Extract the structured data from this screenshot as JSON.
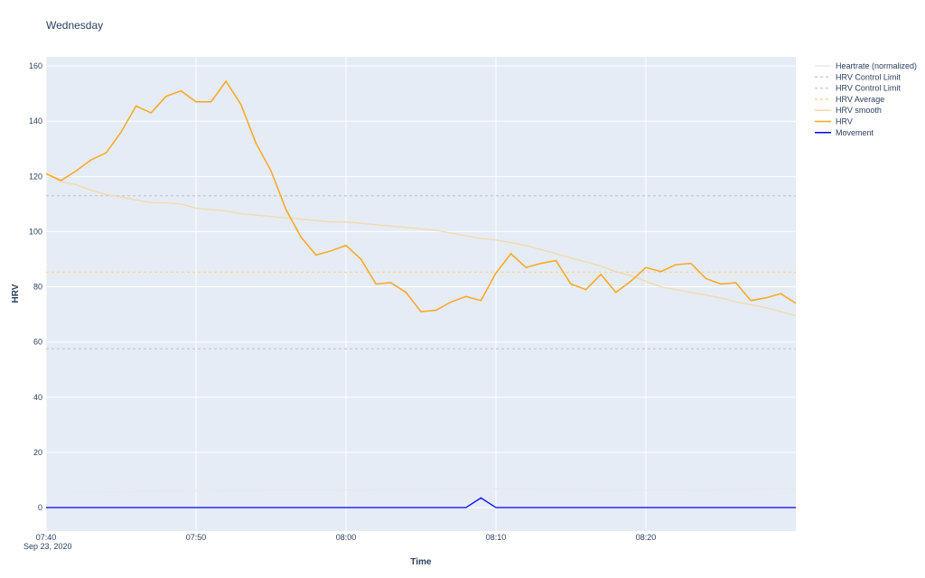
{
  "chart_data": {
    "type": "line",
    "title": "Wednesday",
    "x_label": "Time",
    "y_label": "HRV",
    "x_date": "Sep 23, 2020",
    "x": [
      "07:40",
      "07:41",
      "07:42",
      "07:43",
      "07:44",
      "07:45",
      "07:46",
      "07:47",
      "07:48",
      "07:49",
      "07:50",
      "07:51",
      "07:52",
      "07:53",
      "07:54",
      "07:55",
      "07:56",
      "07:57",
      "07:58",
      "07:59",
      "08:00",
      "08:01",
      "08:02",
      "08:03",
      "08:04",
      "08:05",
      "08:06",
      "08:07",
      "08:08",
      "08:09",
      "08:10",
      "08:11",
      "08:12",
      "08:13",
      "08:14",
      "08:15",
      "08:16",
      "08:17",
      "08:18",
      "08:19",
      "08:20",
      "08:21",
      "08:22",
      "08:23",
      "08:24",
      "08:25",
      "08:26",
      "08:27",
      "08:28",
      "08:29",
      "08:30"
    ],
    "xlim": [
      "07:40",
      "08:30"
    ],
    "xticks": [
      "07:40",
      "07:50",
      "08:00",
      "08:10",
      "08:20"
    ],
    "ylim": [
      -8.5,
      163.3
    ],
    "yticks": [
      0,
      20,
      40,
      60,
      80,
      100,
      120,
      140,
      160
    ],
    "grid": true,
    "series": [
      {
        "name": "Heartrate (normalized)",
        "color": "#e8e8e8",
        "dash": false,
        "values": [
          null,
          null,
          5.5,
          5.6,
          5.6,
          5.7,
          5.8,
          5.9,
          6,
          6,
          6.1,
          6.1,
          6.2,
          6.2,
          6.2,
          6.3,
          6.3,
          6.3,
          6.3,
          6.4,
          6.4,
          6.4,
          6.5,
          6.5,
          6.5,
          6.6,
          6.6,
          6.7,
          6.7,
          6.7,
          6.8,
          6.7,
          6.7,
          6.6,
          6.6,
          6.5,
          6.5,
          6.4,
          6.4,
          6.4,
          6.3,
          6.3,
          6.3,
          6.4,
          6.4,
          6.5,
          6.5,
          6.6,
          6.7,
          6.8,
          7
        ]
      },
      {
        "name": "HRV Control Limit",
        "color": "#c9ccd2",
        "dash": true,
        "y": 113
      },
      {
        "name": "HRV Control Limit",
        "color": "#c9ccd2",
        "dash": true,
        "y": 57.5
      },
      {
        "name": "HRV Average",
        "color": "#f9d39a",
        "dash": true,
        "y": 85.3
      },
      {
        "name": "HRV smooth",
        "color": "#f4d8aa",
        "dash": false,
        "values": [
          121,
          118,
          117,
          115,
          113.5,
          112.5,
          111.5,
          110.5,
          110.5,
          110,
          108.5,
          108,
          107.5,
          106.5,
          106,
          105.5,
          105,
          104.5,
          104,
          103.5,
          103.5,
          103,
          102.5,
          102,
          101.5,
          101,
          100.5,
          99.5,
          98.5,
          97.5,
          97,
          96,
          95,
          93.5,
          92,
          90.5,
          89,
          87.5,
          85.5,
          84,
          82,
          80,
          79,
          78,
          77,
          76,
          74.5,
          73.5,
          72.5,
          71,
          69.5
        ]
      },
      {
        "name": "HRV",
        "color": "#ffa51f",
        "dash": false,
        "values": [
          121,
          118.5,
          122,
          126,
          128.5,
          136,
          145.5,
          143,
          149,
          151,
          147,
          147,
          154.5,
          146,
          132,
          122,
          108,
          98,
          91.5,
          93,
          95,
          90,
          81,
          81.5,
          78,
          71,
          71.5,
          74.5,
          76.5,
          75,
          85,
          92,
          87,
          88.5,
          89.5,
          81,
          79,
          84.5,
          78,
          82,
          87,
          85.5,
          88,
          88.5,
          83,
          81,
          81.5,
          75,
          76,
          77.5,
          74
        ]
      },
      {
        "name": "Movement",
        "color": "#0000ff",
        "dash": false,
        "values": [
          0,
          0,
          0,
          0,
          0,
          0,
          0,
          0,
          0,
          0,
          0,
          0,
          0,
          0,
          0,
          0,
          0,
          0,
          0,
          0,
          0,
          0,
          0,
          0,
          0,
          0,
          0,
          0,
          0,
          3.5,
          0,
          0,
          0,
          0,
          0,
          0,
          0,
          0,
          0,
          0,
          0,
          0,
          0,
          0,
          0,
          0,
          0,
          0,
          0,
          0,
          0
        ]
      }
    ]
  }
}
